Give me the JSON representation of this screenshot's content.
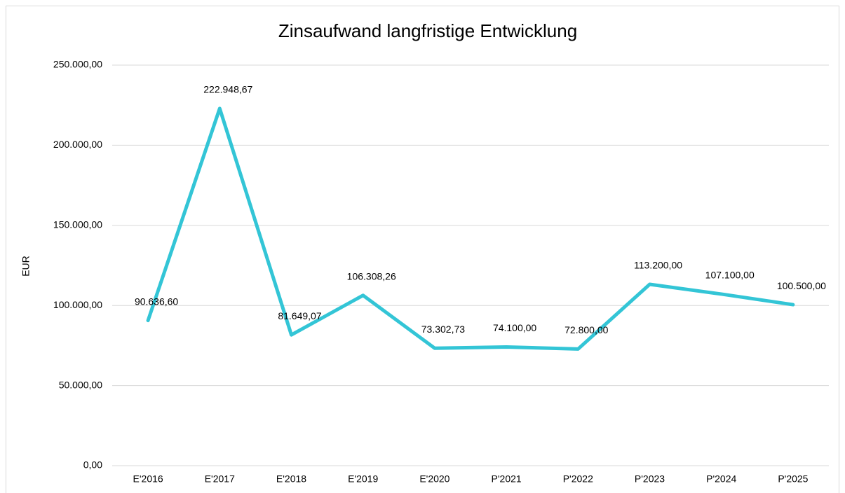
{
  "chart_data": {
    "type": "line",
    "title": "Zinsaufwand langfristige Entwicklung",
    "y_label": "EUR",
    "categories": [
      "E'2016",
      "E'2017",
      "E'2018",
      "E'2019",
      "E'2020",
      "P'2021",
      "P'2022",
      "P'2023",
      "P'2024",
      "P'2025"
    ],
    "series": [
      {
        "name": "Zinsaufwand",
        "color": "#33c5d6",
        "values": [
          90636.6,
          222948.67,
          81649.07,
          106308.26,
          73302.73,
          74100.0,
          72800.0,
          113200.0,
          107100.0,
          100500.0
        ],
        "value_labels": [
          "90.636,60",
          "222.948,67",
          "81.649,07",
          "106.308,26",
          "73.302,73",
          "74.100,00",
          "72.800,00",
          "113.200,00",
          "107.100,00",
          "100.500,00"
        ]
      }
    ],
    "ylim": [
      0,
      250000
    ],
    "yticks": [
      {
        "value": 0,
        "label": "0,00"
      },
      {
        "value": 50000,
        "label": "50.000,00"
      },
      {
        "value": 100000,
        "label": "100.000,00"
      },
      {
        "value": 150000,
        "label": "150.000,00"
      },
      {
        "value": 200000,
        "label": "200.000,00"
      },
      {
        "value": 250000,
        "label": "250.000,00"
      }
    ],
    "grid": true
  }
}
